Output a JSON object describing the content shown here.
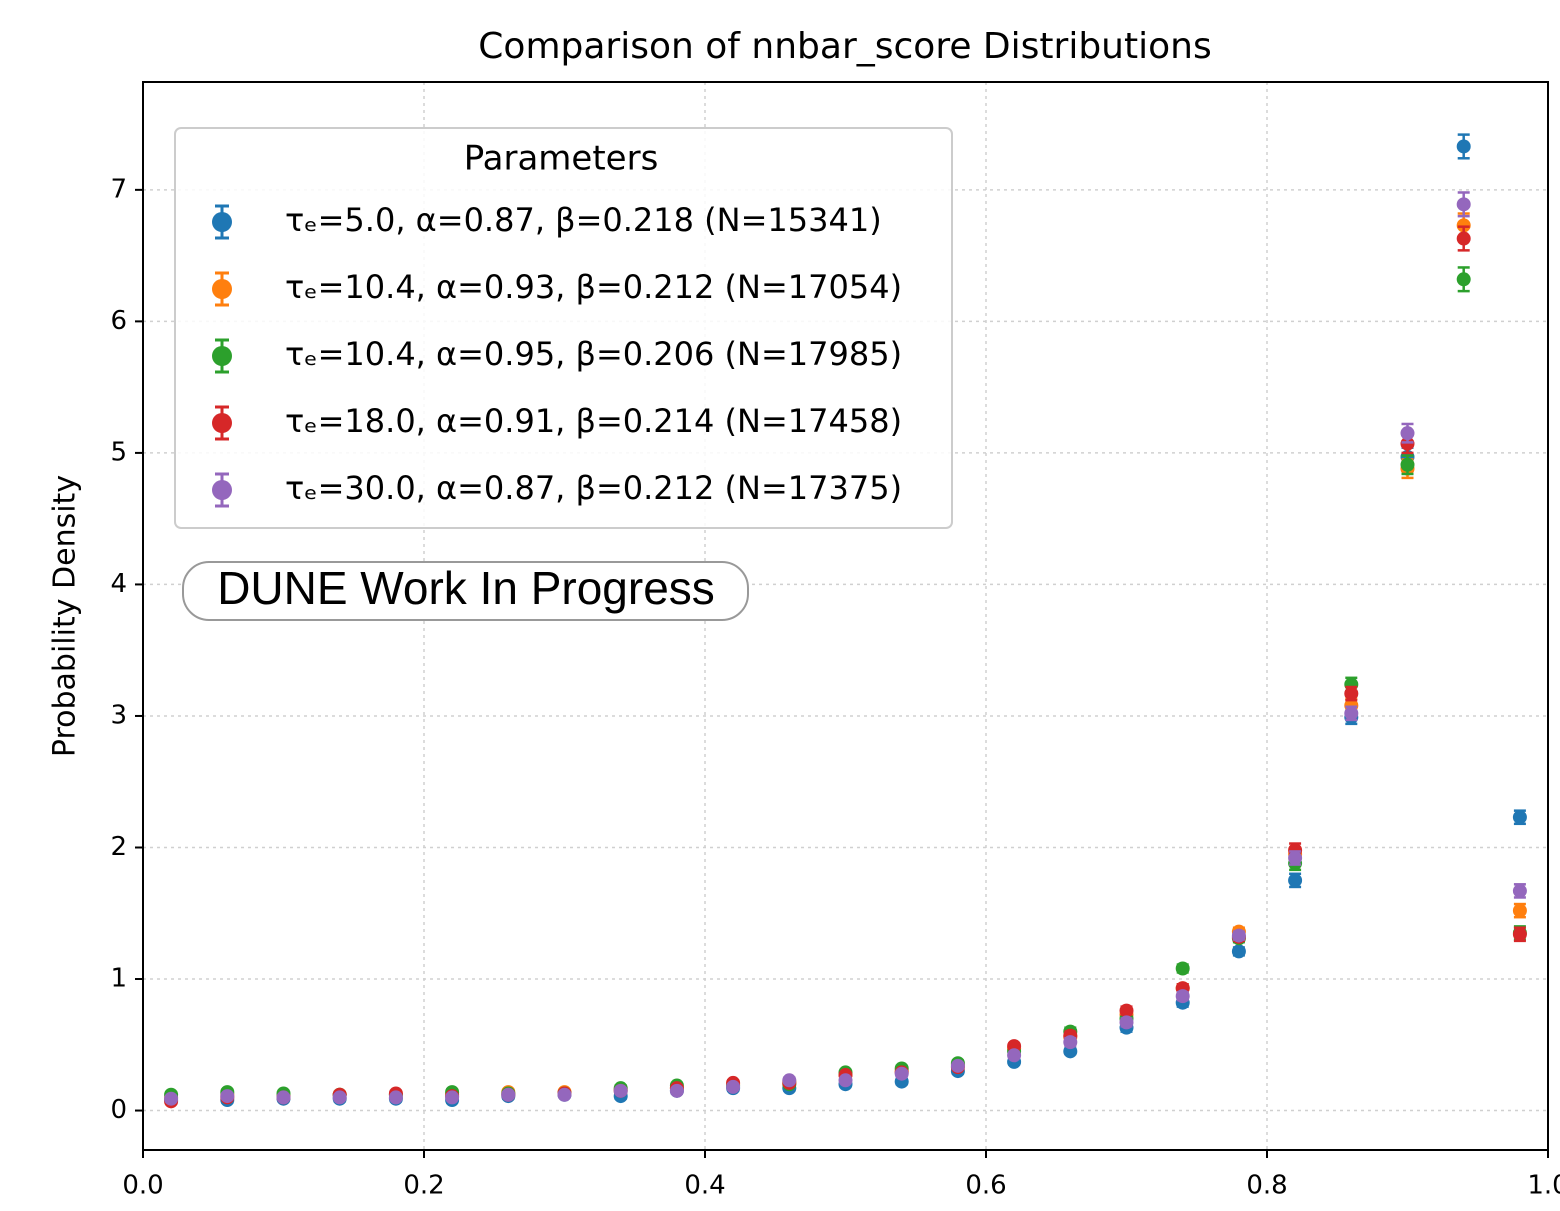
{
  "chart_data": {
    "type": "errorbar",
    "title": "Comparison of nnbar_score Distributions",
    "ylabel": "Probability Density",
    "annotation": "DUNE Work In Progress",
    "legend_title": "Parameters",
    "legend": "upper left",
    "grid": true,
    "x": [
      0.02,
      0.06,
      0.1,
      0.14,
      0.18,
      0.22,
      0.26,
      0.3,
      0.34,
      0.38,
      0.42,
      0.46,
      0.5,
      0.54,
      0.58,
      0.62,
      0.66,
      0.7,
      0.74,
      0.78,
      0.82,
      0.86,
      0.9,
      0.94,
      0.98
    ],
    "xlim": [
      0,
      1
    ],
    "xticks": [
      {
        "value": 0,
        "label": "0.0"
      },
      0.2,
      0.4,
      0.6,
      0.8,
      {
        "value": 1,
        "label": "1.0"
      }
    ],
    "ylim": [
      -0.3,
      7.82
    ],
    "yticks": [
      0,
      1,
      2,
      3,
      4,
      5,
      6,
      7
    ],
    "series": [
      {
        "name": "τₑ=5.0, α=0.87, β=0.218 (N=15341)",
        "color": "#1f77b4",
        "values": [
          0.08,
          0.08,
          0.09,
          0.09,
          0.09,
          0.08,
          0.11,
          0.12,
          0.11,
          0.15,
          0.17,
          0.17,
          0.2,
          0.22,
          0.3,
          0.37,
          0.45,
          0.63,
          0.82,
          1.21,
          1.75,
          2.99,
          4.97,
          7.33,
          2.23
        ],
        "errors": [
          0.02,
          0.02,
          0.02,
          0.02,
          0.02,
          0.02,
          0.02,
          0.02,
          0.02,
          0.02,
          0.02,
          0.02,
          0.02,
          0.02,
          0.02,
          0.02,
          0.02,
          0.03,
          0.03,
          0.03,
          0.05,
          0.05,
          0.07,
          0.09,
          0.05
        ]
      },
      {
        "name": "τₑ=10.4, α=0.93, β=0.212 (N=17054)",
        "color": "#ff7f0e",
        "values": [
          0.1,
          0.12,
          0.11,
          0.12,
          0.12,
          0.12,
          0.14,
          0.14,
          0.16,
          0.17,
          0.2,
          0.22,
          0.27,
          0.3,
          0.35,
          0.47,
          0.56,
          0.73,
          0.93,
          1.36,
          1.95,
          3.08,
          4.88,
          6.73,
          1.52
        ],
        "errors": [
          0.02,
          0.02,
          0.02,
          0.02,
          0.02,
          0.02,
          0.02,
          0.02,
          0.02,
          0.02,
          0.02,
          0.02,
          0.02,
          0.02,
          0.02,
          0.02,
          0.03,
          0.03,
          0.03,
          0.03,
          0.05,
          0.05,
          0.07,
          0.09,
          0.05
        ]
      },
      {
        "name": "τₑ=10.4, α=0.95, β=0.206 (N=17985)",
        "color": "#2ca02c",
        "values": [
          0.12,
          0.14,
          0.13,
          0.12,
          0.12,
          0.14,
          0.13,
          0.13,
          0.17,
          0.19,
          0.19,
          0.2,
          0.29,
          0.32,
          0.36,
          0.45,
          0.6,
          0.7,
          1.08,
          1.31,
          1.88,
          3.24,
          4.91,
          6.32,
          1.35
        ],
        "errors": [
          0.02,
          0.02,
          0.02,
          0.02,
          0.02,
          0.02,
          0.02,
          0.02,
          0.02,
          0.02,
          0.02,
          0.02,
          0.02,
          0.02,
          0.02,
          0.02,
          0.03,
          0.03,
          0.03,
          0.03,
          0.05,
          0.05,
          0.07,
          0.09,
          0.05
        ]
      },
      {
        "name": "τₑ=18.0, α=0.91, β=0.214 (N=17458)",
        "color": "#d62728",
        "values": [
          0.07,
          0.1,
          0.1,
          0.12,
          0.13,
          0.11,
          0.12,
          0.13,
          0.15,
          0.17,
          0.21,
          0.21,
          0.27,
          0.29,
          0.33,
          0.49,
          0.57,
          0.76,
          0.93,
          1.32,
          1.98,
          3.17,
          5.07,
          6.63,
          1.34
        ],
        "errors": [
          0.02,
          0.02,
          0.02,
          0.02,
          0.02,
          0.02,
          0.02,
          0.02,
          0.02,
          0.02,
          0.02,
          0.02,
          0.02,
          0.02,
          0.02,
          0.02,
          0.03,
          0.03,
          0.03,
          0.03,
          0.05,
          0.05,
          0.07,
          0.09,
          0.05
        ]
      },
      {
        "name": "τₑ=30.0, α=0.87, β=0.212 (N=17375)",
        "color": "#9467bd",
        "values": [
          0.09,
          0.11,
          0.1,
          0.1,
          0.1,
          0.1,
          0.12,
          0.12,
          0.15,
          0.15,
          0.18,
          0.23,
          0.23,
          0.28,
          0.34,
          0.42,
          0.52,
          0.67,
          0.87,
          1.33,
          1.92,
          3.02,
          5.15,
          6.89,
          1.67
        ],
        "errors": [
          0.02,
          0.02,
          0.02,
          0.02,
          0.02,
          0.02,
          0.02,
          0.02,
          0.02,
          0.02,
          0.02,
          0.02,
          0.02,
          0.02,
          0.02,
          0.02,
          0.03,
          0.03,
          0.03,
          0.03,
          0.05,
          0.05,
          0.07,
          0.09,
          0.05
        ]
      }
    ]
  }
}
